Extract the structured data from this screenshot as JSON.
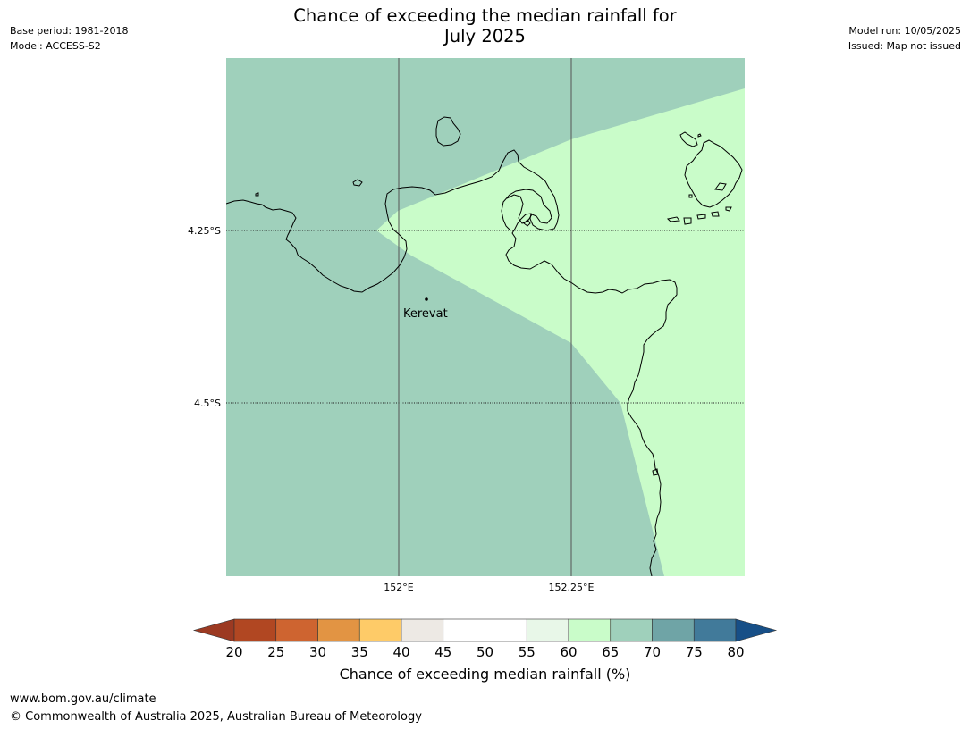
{
  "header": {
    "title_line1": "Chance of exceeding the median rainfall for",
    "title_line2": "July 2025",
    "base_period": "Base period: 1981-2018",
    "model": "Model: ACCESS-S2",
    "model_run": "Model run: 10/05/2025",
    "issued": "Issued: Map not issued"
  },
  "map": {
    "lat_labels": [
      "4.25°S",
      "4.5°S"
    ],
    "lon_labels": [
      "152°E",
      "152.25°E"
    ],
    "place": "Kerevat",
    "colors": {
      "band_65_70": "#9fd0bb",
      "band_60_65": "#c9fcc9",
      "coast": "#000000",
      "grid": "#555555"
    }
  },
  "colorbar": {
    "ticks": [
      "20",
      "25",
      "30",
      "35",
      "40",
      "45",
      "50",
      "55",
      "60",
      "65",
      "70",
      "75",
      "80"
    ],
    "colors": [
      "#9c3a22",
      "#b14722",
      "#ce6430",
      "#e29443",
      "#fecb68",
      "#ede9e4",
      "#ffffff",
      "#ffffff",
      "#e8f7e8",
      "#c9fcc9",
      "#9fd0bb",
      "#6fa4a6",
      "#417a9a",
      "#174f87"
    ],
    "label": "Chance of exceeding median rainfall (%)"
  },
  "footer": {
    "url": "www.bom.gov.au/climate",
    "copyright": "© Commonwealth of Australia 2025, Australian Bureau of Meteorology"
  }
}
